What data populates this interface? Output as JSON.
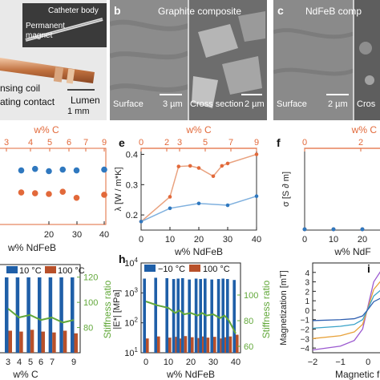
{
  "top": {
    "photo": {
      "catheter_body": "Catheter body",
      "permanent": "Permanent",
      "magnet": "magnet",
      "sensing_coil": "nsing coil",
      "contact": "ating contact",
      "lumen": "Lumen",
      "scale": "1 mm"
    },
    "panel_b": {
      "letter": "b",
      "title": "Graphite composite",
      "surface": "Surface",
      "scale_left": "3 µm",
      "cross": "Cross section",
      "scale_right": "2 µm"
    },
    "panel_c": {
      "letter": "c",
      "title": "NdFeB comp",
      "surface": "Surface",
      "scale_left": "2 µm",
      "cross": "Cros"
    }
  },
  "colors": {
    "orange": "#e2693a",
    "blue": "#2f78bf",
    "green": "#62a83a",
    "dark_blue": "#1f5fa8",
    "dark_orange": "#b8502a"
  },
  "chart_data": [
    {
      "type": "scatter",
      "panel": "d (cropped)",
      "top_axis_label": "w% C",
      "top_ticks": [
        "3",
        "4",
        "5",
        "6",
        "7",
        "9"
      ],
      "xlabel": "w% NdFeB",
      "x_ticks": [
        "20",
        "30",
        "40"
      ],
      "series": [
        {
          "color": "#2f78bf",
          "x": [
            0,
            10,
            15,
            20,
            25,
            30,
            40
          ],
          "y": [
            0.72,
            0.71,
            0.73,
            0.7,
            0.72,
            0.71,
            0.72
          ]
        },
        {
          "color": "#e2693a",
          "x": [
            0,
            10,
            15,
            20,
            25,
            30,
            40
          ],
          "y": [
            0.4,
            0.42,
            0.41,
            0.4,
            0.43,
            0.35,
            0.39
          ]
        }
      ]
    },
    {
      "type": "line",
      "panel": "e",
      "letter": "e",
      "top_axis_label": "w% C",
      "top_ticks": [
        "0",
        "2",
        "3",
        "5",
        "7",
        "9"
      ],
      "ylabel": "λ [W / m*K]",
      "y_ticks": [
        "0.2",
        "0.3",
        "0.4"
      ],
      "xlabel": "w% NdFeB",
      "x_ticks": [
        "0",
        "10",
        "20",
        "30",
        "40"
      ],
      "xlim": [
        0,
        40
      ],
      "ylim": [
        0.15,
        0.42
      ],
      "series": [
        {
          "color": "#e2693a",
          "x": [
            0,
            10,
            13,
            17,
            20,
            25,
            28,
            30,
            40
          ],
          "y": [
            0.178,
            0.26,
            0.36,
            0.362,
            0.355,
            0.328,
            0.362,
            0.37,
            0.4
          ]
        },
        {
          "color": "#2f78bf",
          "x": [
            0,
            10,
            20,
            30,
            40
          ],
          "y": [
            0.178,
            0.222,
            0.238,
            0.232,
            0.262
          ]
        }
      ]
    },
    {
      "type": "scatter",
      "panel": "f (cropped)",
      "letter": "f",
      "top_axis_label": "w% C",
      "top_ticks": [
        "0",
        "2"
      ],
      "ylabel": "σ [S ∂ m]",
      "xlabel": "w% NdF",
      "x_ticks": [
        "0",
        "10",
        "20"
      ],
      "series": [
        {
          "color": "#e2693a",
          "x": [
            0,
            10,
            20,
            30
          ],
          "y": [
            0,
            0,
            0,
            0
          ]
        },
        {
          "color": "#2f78bf",
          "x": [
            0,
            10,
            20,
            30
          ],
          "y": [
            0,
            0,
            0,
            0
          ]
        }
      ]
    },
    {
      "type": "bar",
      "panel": "g (cropped)",
      "legend": [
        "10 °C",
        "100 °C"
      ],
      "xlabel": "w% C",
      "x_ticks": [
        "3",
        "4",
        "5",
        "6",
        "7",
        "9"
      ],
      "right_ylabel": "Stiffness ratio",
      "right_ticks": [
        "120",
        "100",
        "80"
      ],
      "categories": [
        "3",
        "4",
        "5",
        "6",
        "7",
        "8",
        "9"
      ],
      "cold_values": [
        1.0,
        1.0,
        1.0,
        1.0,
        1.0,
        1.0,
        1.0
      ],
      "hot_values": [
        0.25,
        0.24,
        0.26,
        0.24,
        0.23,
        0.25,
        0.22
      ],
      "ratio": [
        95,
        88,
        90,
        86,
        88,
        84,
        86
      ]
    },
    {
      "type": "bar",
      "panel": "h",
      "letter": "h",
      "legend": [
        "−10 °C",
        "100 °C"
      ],
      "ylabel": "|E*| [MPa]",
      "y_ticks": [
        "10^1",
        "10^2",
        "10^3",
        "10^4"
      ],
      "right_ylabel": "Stiffness ratio",
      "right_ticks": [
        "100",
        "80",
        "60"
      ],
      "xlabel": "w% NdFeB",
      "x_ticks": [
        "0",
        "10",
        "20",
        "30",
        "40"
      ],
      "categories": [
        0,
        5,
        10,
        13,
        15,
        17,
        20,
        23,
        25,
        27,
        30,
        33,
        35,
        37,
        40
      ],
      "cold_values": [
        3000,
        3200,
        3100,
        2900,
        3000,
        3100,
        2800,
        3000,
        2900,
        3000,
        2800,
        2900,
        3000,
        2900,
        2700
      ],
      "hot_values": [
        30,
        35,
        32,
        34,
        30,
        36,
        33,
        31,
        35,
        32,
        34,
        30,
        33,
        35,
        40
      ],
      "ratio": [
        95,
        92,
        90,
        86,
        88,
        85,
        86,
        84,
        86,
        84,
        85,
        82,
        84,
        80,
        70
      ]
    },
    {
      "type": "line",
      "panel": "i (cropped)",
      "letter": "i",
      "ylabel": "Magnetization [mT]",
      "y_ticks": [
        "4",
        "3",
        "2",
        "1",
        "0",
        "−1",
        "−2",
        "−3",
        "−4"
      ],
      "xlabel": "Magnetic fi",
      "x_ticks": [
        "−2",
        "−1",
        "0"
      ],
      "xlim": [
        -2,
        0.6
      ],
      "ylim": [
        -4.5,
        5
      ],
      "series": [
        {
          "color": "#9b59d0",
          "x": [
            -2,
            -1,
            -0.5,
            -0.2,
            0,
            0.2,
            0.6
          ],
          "y": [
            -4.2,
            -3.8,
            -3.2,
            -2.0,
            0.5,
            3.0,
            4.8
          ]
        },
        {
          "color": "#e8a23a",
          "x": [
            -2,
            -1,
            -0.5,
            -0.2,
            0,
            0.2,
            0.6
          ],
          "y": [
            -3.0,
            -2.7,
            -2.3,
            -1.5,
            0.3,
            2.2,
            3.6
          ]
        },
        {
          "color": "#3aa3c8",
          "x": [
            -2,
            -1,
            -0.5,
            -0.2,
            0,
            0.2,
            0.6
          ],
          "y": [
            -1.9,
            -1.7,
            -1.5,
            -1.0,
            0.2,
            1.5,
            2.5
          ]
        },
        {
          "color": "#2f5fb0",
          "x": [
            -2,
            -1,
            -0.5,
            -0.2,
            0,
            0.2,
            0.6
          ],
          "y": [
            -1.1,
            -1.0,
            -0.9,
            -0.6,
            0.1,
            0.9,
            1.5
          ]
        }
      ]
    }
  ]
}
